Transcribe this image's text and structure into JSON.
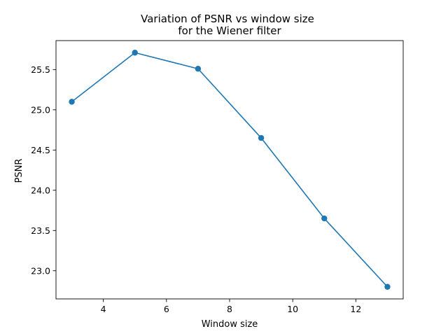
{
  "chart_data": {
    "type": "line",
    "title": [
      "Variation of PSNR vs window size",
      "for the Wiener filter"
    ],
    "xlabel": "Window size",
    "ylabel": "PSNR",
    "x": [
      3,
      5,
      7,
      9,
      11,
      13
    ],
    "series": [
      {
        "values": [
          25.1,
          25.71,
          25.51,
          24.65,
          23.65,
          22.8
        ],
        "color": "#1f77b4",
        "marker": "circle"
      }
    ],
    "xlim": [
      2.5,
      13.5
    ],
    "ylim": [
      22.65,
      25.86
    ],
    "xticks": [
      4,
      6,
      8,
      10,
      12
    ],
    "yticks": [
      23.0,
      23.5,
      24.0,
      24.5,
      25.0,
      25.5
    ],
    "ytick_labels": [
      "23.0",
      "23.5",
      "24.0",
      "24.5",
      "25.0",
      "25.5"
    ],
    "grid": false,
    "legend": "none"
  }
}
